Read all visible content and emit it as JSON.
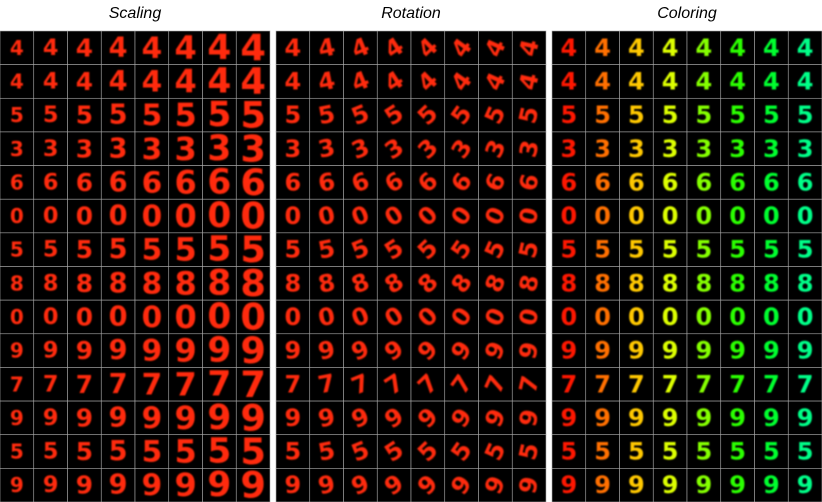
{
  "panels": [
    {
      "title": "Scaling"
    },
    {
      "title": "Rotation"
    },
    {
      "title": "Coloring"
    }
  ],
  "digits": [
    "4",
    "4",
    "5",
    "3",
    "6",
    "0",
    "5",
    "8",
    "0",
    "9",
    "7",
    "9",
    "5",
    "9"
  ]
}
